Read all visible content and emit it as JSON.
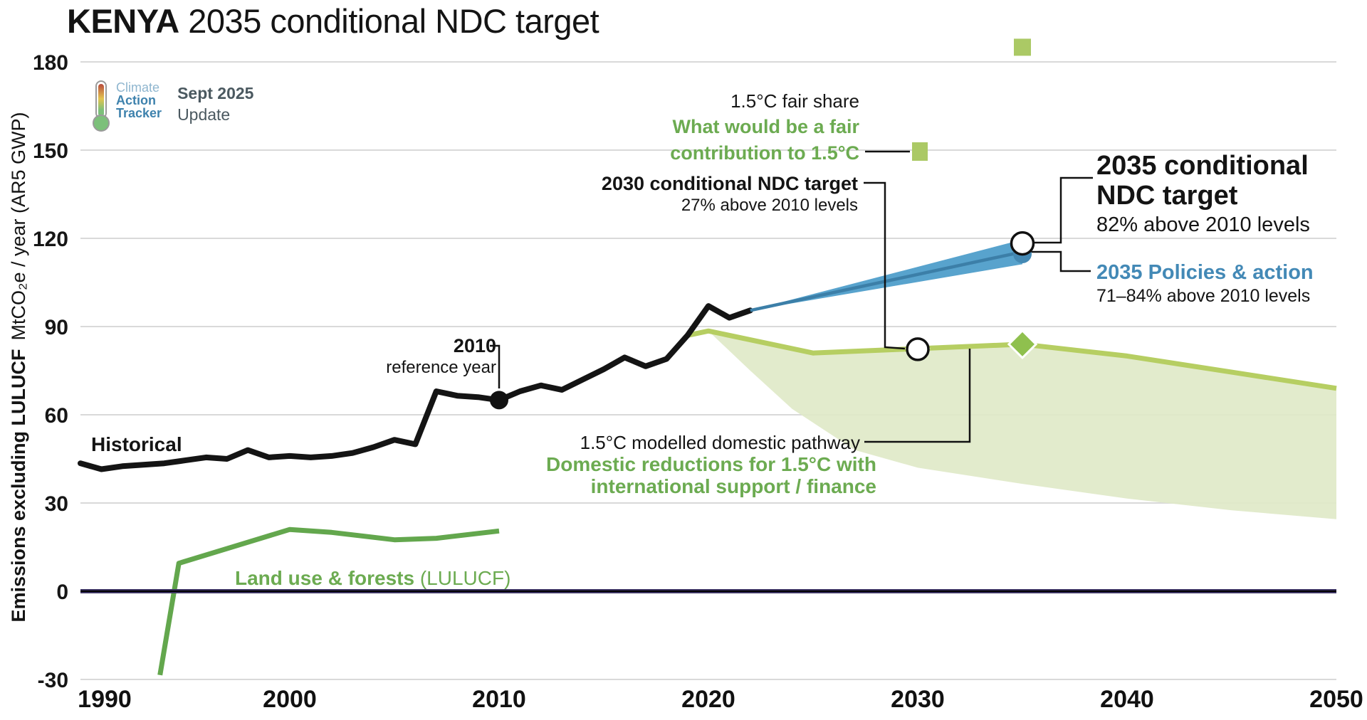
{
  "header": {
    "title_bold": "KENYA",
    "title_rest": " 2035 conditional NDC target",
    "logo": {
      "line1": "Climate",
      "line2": "Action",
      "line3": "Tracker"
    },
    "release_bold": "Sept 2025",
    "release_rest": "Update"
  },
  "axis": {
    "y_label_bold": "Emissions excluding LULUCF",
    "y_label_rest": "MtCO₂e / year (AR5 GWP)"
  },
  "annotations": {
    "fair_share": {
      "line1": "1.5°C fair share",
      "line2": "What would be a fair",
      "line3": "contribution to 1.5°C"
    },
    "ndc2030": {
      "line1": "2030 conditional NDC target",
      "line2": "27% above 2010 levels"
    },
    "ndc2035": {
      "line1": "2035 conditional",
      "line2": "NDC target",
      "line3": "82% above 2010 levels"
    },
    "policies": {
      "line1": "2035 Policies & action",
      "line2": "71–84% above 2010 levels"
    },
    "ref2010": {
      "line1": "2010",
      "line2": "reference year"
    },
    "pathway": {
      "line1": "1.5°C modelled domestic pathway",
      "line2": "Domestic reductions for 1.5°C  with",
      "line3": "international support / finance"
    },
    "historical_label": "Historical",
    "lulucf_bold": "Land use & forests",
    "lulucf_rest": " (LULUCF)"
  },
  "colors": {
    "historical": "#141414",
    "lulucf_line": "#63a74d",
    "pathway_line": "#b6ce62",
    "pathway_area": "#dfe9c8",
    "wedge_fill": "#58a3cd",
    "wedge_central": "#3c7fa8",
    "blue_marker": "#4489b4",
    "diamond_green": "#8fc04e",
    "square_green": "#abc965",
    "zero_line_outer": "#3a3160",
    "zero_line_inner": "#000000",
    "gridline": "#d9d9d9",
    "green_text": "#6cab51",
    "blue_text": "#4389b6"
  },
  "chart_data": {
    "type": "line",
    "title": "KENYA 2035 conditional NDC target",
    "xlabel": "",
    "ylabel": "Emissions excluding LULUCF MtCO₂e / year (AR5 GWP)",
    "x_ticks": [
      1990,
      2000,
      2010,
      2020,
      2030,
      2040,
      2050
    ],
    "y_ticks": [
      -30,
      0,
      30,
      60,
      90,
      120,
      150,
      180
    ],
    "xlim": [
      1990,
      2050
    ],
    "ylim": [
      -44,
      186
    ],
    "grid": true,
    "legend_position": "annotations-inline",
    "series": [
      {
        "name": "Historical",
        "type": "line",
        "color": "#141414",
        "points": [
          [
            1990,
            43.5
          ],
          [
            1991,
            41.5
          ],
          [
            1992,
            42.5
          ],
          [
            1993,
            43
          ],
          [
            1994,
            43.5
          ],
          [
            1995,
            44.5
          ],
          [
            1996,
            45.5
          ],
          [
            1997,
            45
          ],
          [
            1998,
            48
          ],
          [
            1999,
            45.5
          ],
          [
            2000,
            46
          ],
          [
            2001,
            45.5
          ],
          [
            2002,
            46
          ],
          [
            2003,
            47
          ],
          [
            2004,
            49
          ],
          [
            2005,
            51.5
          ],
          [
            2006,
            50
          ],
          [
            2007,
            68
          ],
          [
            2008,
            66.5
          ],
          [
            2009,
            66
          ],
          [
            2010,
            65
          ],
          [
            2011,
            68
          ],
          [
            2012,
            70
          ],
          [
            2013,
            68.5
          ],
          [
            2014,
            72
          ],
          [
            2015,
            75.5
          ],
          [
            2016,
            79.5
          ],
          [
            2017,
            76.5
          ],
          [
            2018,
            79
          ],
          [
            2019,
            87
          ],
          [
            2020,
            97
          ],
          [
            2021,
            93
          ],
          [
            2022,
            95.5
          ]
        ]
      },
      {
        "name": "Land use & forests (LULUCF)",
        "type": "line",
        "color": "#63a74d",
        "points": [
          [
            1993.8,
            -28.5
          ],
          [
            1994.7,
            9.5
          ],
          [
            2000,
            21
          ],
          [
            2002,
            20
          ],
          [
            2005,
            17.5
          ],
          [
            2007,
            18
          ],
          [
            2010,
            20.5
          ]
        ]
      },
      {
        "name": "1.5°C modelled domestic pathway",
        "type": "line",
        "color": "#b6ce62",
        "points": [
          [
            2019,
            87
          ],
          [
            2020,
            88.5
          ],
          [
            2025,
            81
          ],
          [
            2030,
            82.5
          ],
          [
            2035,
            84
          ],
          [
            2040,
            80
          ],
          [
            2045,
            74.5
          ],
          [
            2050,
            69
          ]
        ]
      },
      {
        "name": "Domestic reductions for 1.5°C with international support / finance (lower bound)",
        "type": "area-lower",
        "color": "#dfe9c8",
        "points": [
          [
            2020,
            88.5
          ],
          [
            2022,
            75
          ],
          [
            2024,
            62
          ],
          [
            2027,
            48
          ],
          [
            2030,
            42
          ],
          [
            2035,
            36.5
          ],
          [
            2040,
            31.5
          ],
          [
            2045,
            27.5
          ],
          [
            2050,
            24.5
          ]
        ]
      },
      {
        "name": "2035 Policies & action (71–84% above 2010 levels)",
        "type": "wedge",
        "color": "#58a3cd",
        "central_color": "#3c7fa8",
        "start": [
          2022,
          95.5
        ],
        "end_year": 2035,
        "end_upper": 119.6,
        "end_lower": 111.2,
        "end_central": 115.4
      }
    ],
    "markers": [
      {
        "name": "pathway-2030",
        "shape": "diamond",
        "color": "#8fc04e",
        "at": [
          2030,
          82.5
        ],
        "size": 22
      },
      {
        "name": "pathway-2035",
        "shape": "diamond",
        "color": "#8fc04e",
        "at": [
          2035,
          84
        ],
        "size": 27
      },
      {
        "name": "fair-share-2035",
        "shape": "square",
        "color": "#abc965",
        "at": [
          2035,
          185
        ],
        "size": 24
      },
      {
        "name": "reference-2010",
        "shape": "dot",
        "color": "#111111",
        "at": [
          2010,
          65
        ],
        "size": 13
      },
      {
        "name": "policies-action-2035",
        "shape": "circle-blue",
        "color": "#4489b4",
        "at": [
          2035,
          114.7
        ],
        "size": 13
      },
      {
        "name": "ndc-target-2030",
        "shape": "circle-open",
        "color": "#ffffff",
        "at": [
          2030,
          82.3
        ],
        "size": 15
      },
      {
        "name": "ndc-target-2035",
        "shape": "circle-open",
        "color": "#ffffff",
        "at": [
          2035,
          118.3
        ],
        "size": 15.5
      }
    ]
  }
}
